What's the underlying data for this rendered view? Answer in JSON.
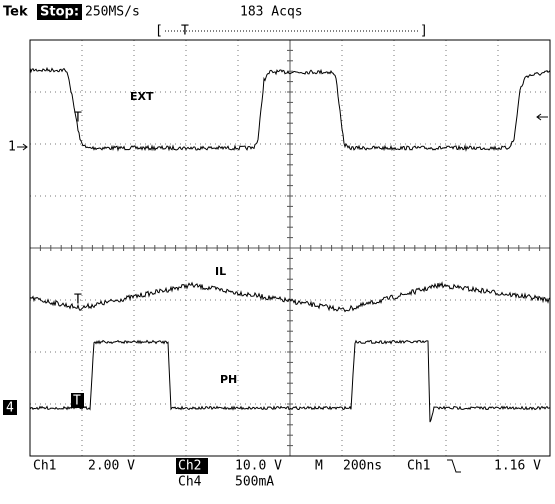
{
  "header": {
    "brand": "Tek",
    "status": "Stop:",
    "sample_rate": "250MS/s",
    "acquisitions": "183 Acqs"
  },
  "trigger_bar": {
    "marker": "T"
  },
  "traces": [
    {
      "label": "EXT",
      "trigger_marker": "T"
    },
    {
      "label": "IL",
      "trigger_marker": "T"
    },
    {
      "label": "PH",
      "trigger_marker": "T"
    }
  ],
  "channel_markers": {
    "ch1": "1",
    "ch4": "4"
  },
  "readout": {
    "ch1": "Ch1",
    "ch1_scale": "2.00 V",
    "ch2": "Ch2",
    "ch2_scale": "10.0 V",
    "ch4": "Ch4",
    "ch4_scale": "500mA",
    "timebase_label": "M",
    "timebase": "200ns",
    "trigger_source": "Ch1",
    "trigger_level": "1.16 V"
  }
}
